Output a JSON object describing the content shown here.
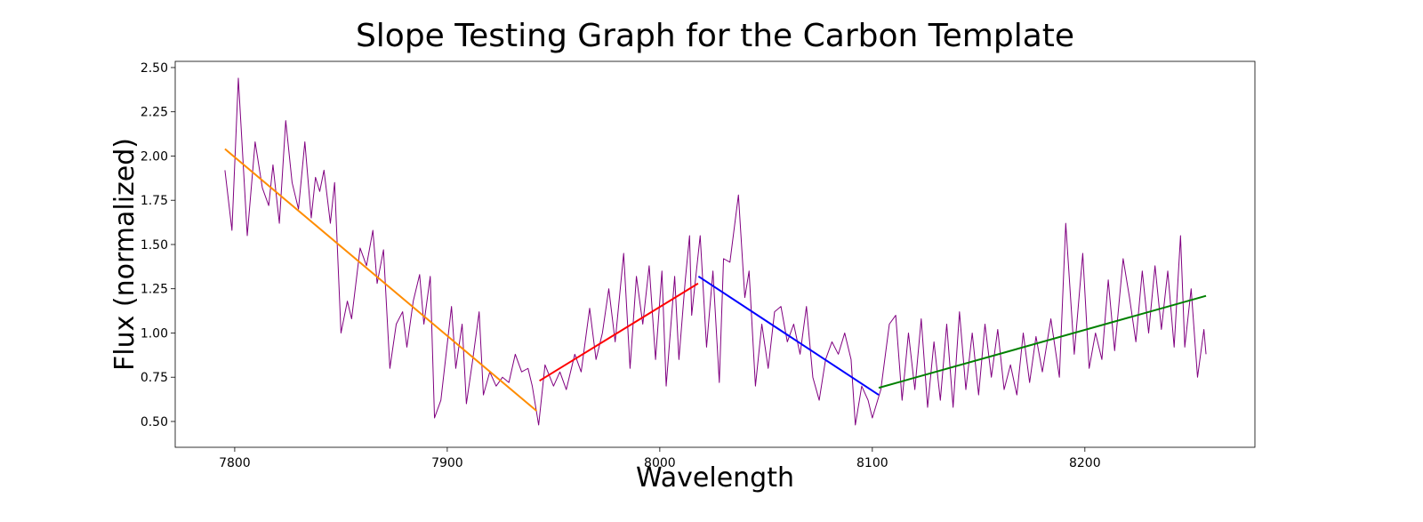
{
  "chart_data": {
    "type": "line",
    "title": "Slope Testing Graph for the Carbon Template",
    "x_label": "Wavelength",
    "y_label": "Flux (normalized)",
    "xlim": [
      7772,
      8280
    ],
    "ylim": [
      0.354,
      2.535
    ],
    "xticks": [
      7800,
      7900,
      8000,
      8100,
      8200
    ],
    "yticks": [
      {
        "value": 0.5,
        "label": "0.50"
      },
      0.75,
      {
        "value": 1.0,
        "label": "1.00"
      },
      1.25,
      {
        "value": 1.5,
        "label": "1.50"
      },
      1.75,
      {
        "value": 2.0,
        "label": "2.00"
      },
      2.25,
      {
        "value": 2.5,
        "label": "2.50"
      }
    ],
    "grid": false,
    "series": [
      {
        "color": "#800080",
        "width": 1,
        "x": [
          7795.4,
          7798.7,
          7801.7,
          7805.9,
          7809.6,
          7813,
          7816,
          7818,
          7821,
          7824,
          7827,
          7830,
          7833,
          7836,
          7838,
          7840,
          7842,
          7845,
          7847,
          7850,
          7853,
          7855,
          7859,
          7862,
          7865,
          7867,
          7870,
          7873,
          7876,
          7879,
          7881,
          7884,
          7887,
          7889,
          7892,
          7894,
          7897,
          7902,
          7904,
          7907,
          7909,
          7912,
          7915,
          7917,
          7920,
          7923,
          7926,
          7929,
          7932,
          7935,
          7938,
          7940,
          7943,
          7946,
          7950,
          7953,
          7956,
          7960,
          7963,
          7967,
          7970,
          7973,
          7976,
          7979,
          7983,
          7986,
          7989,
          7992,
          7995,
          7998,
          8001,
          8003,
          8007,
          8009,
          8012,
          8014,
          8015,
          8019,
          8022,
          8025,
          8028,
          8030,
          8033,
          8037,
          8040,
          8042,
          8045,
          8048,
          8051,
          8054,
          8057,
          8060,
          8063,
          8066,
          8069,
          8072,
          8075,
          8078,
          8081,
          8084,
          8087,
          8090,
          8092,
          8095,
          8098,
          8100,
          8104,
          8108,
          8111,
          8114,
          8117,
          8120,
          8123,
          8126,
          8129,
          8132,
          8135,
          8138,
          8141,
          8144,
          8147,
          8150,
          8153,
          8156,
          8159,
          8162,
          8165,
          8168,
          8171,
          8174,
          8177,
          8180,
          8184,
          8188,
          8191,
          8195,
          8199,
          8202,
          8205,
          8208,
          8211,
          8214,
          8218,
          8221,
          8224,
          8227,
          8230,
          8233,
          8236,
          8239,
          8242,
          8245,
          8247,
          8250,
          8253,
          8256,
          8257
        ],
        "values": [
          1.92,
          1.58,
          2.44,
          1.55,
          2.08,
          1.82,
          1.72,
          1.95,
          1.62,
          2.2,
          1.85,
          1.7,
          2.08,
          1.65,
          1.88,
          1.8,
          1.92,
          1.62,
          1.85,
          1.0,
          1.18,
          1.08,
          1.48,
          1.38,
          1.58,
          1.28,
          1.47,
          0.8,
          1.05,
          1.12,
          0.92,
          1.18,
          1.33,
          1.05,
          1.32,
          0.52,
          0.62,
          1.15,
          0.8,
          1.05,
          0.6,
          0.85,
          1.12,
          0.65,
          0.78,
          0.7,
          0.75,
          0.72,
          0.88,
          0.78,
          0.8,
          0.7,
          0.48,
          0.82,
          0.7,
          0.78,
          0.68,
          0.88,
          0.78,
          1.14,
          0.85,
          1.0,
          1.25,
          0.95,
          1.45,
          0.8,
          1.32,
          1.05,
          1.38,
          0.85,
          1.35,
          0.7,
          1.32,
          0.85,
          1.3,
          1.55,
          1.1,
          1.55,
          0.92,
          1.35,
          0.72,
          1.42,
          1.4,
          1.78,
          1.2,
          1.35,
          0.7,
          1.05,
          0.8,
          1.12,
          1.15,
          0.95,
          1.05,
          0.88,
          1.15,
          0.75,
          0.62,
          0.85,
          0.95,
          0.88,
          1.0,
          0.85,
          0.48,
          0.7,
          0.62,
          0.52,
          0.68,
          1.05,
          1.1,
          0.62,
          1.0,
          0.68,
          1.08,
          0.58,
          0.95,
          0.62,
          1.05,
          0.58,
          1.12,
          0.68,
          1.0,
          0.65,
          1.05,
          0.75,
          1.02,
          0.68,
          0.82,
          0.65,
          1.0,
          0.72,
          0.98,
          0.78,
          1.08,
          0.75,
          1.62,
          0.88,
          1.45,
          0.8,
          1.0,
          0.85,
          1.3,
          0.9,
          1.42,
          1.2,
          0.95,
          1.35,
          1.0,
          1.38,
          1.02,
          1.35,
          0.92,
          1.55,
          0.92,
          1.25,
          0.75,
          1.02,
          0.88
        ]
      },
      {
        "color": "#ff8c00",
        "width": 2,
        "x": [
          7795.4,
          7942
        ],
        "values": [
          2.04,
          0.56
        ]
      },
      {
        "color": "#ff0000",
        "width": 2,
        "x": [
          7943.4,
          8018
        ],
        "values": [
          0.73,
          1.28
        ]
      },
      {
        "color": "#0000ff",
        "width": 2,
        "x": [
          8018.2,
          8103
        ],
        "values": [
          1.32,
          0.65
        ]
      },
      {
        "color": "#008000",
        "width": 2,
        "x": [
          8103,
          8257
        ],
        "values": [
          0.69,
          1.21
        ]
      }
    ]
  }
}
